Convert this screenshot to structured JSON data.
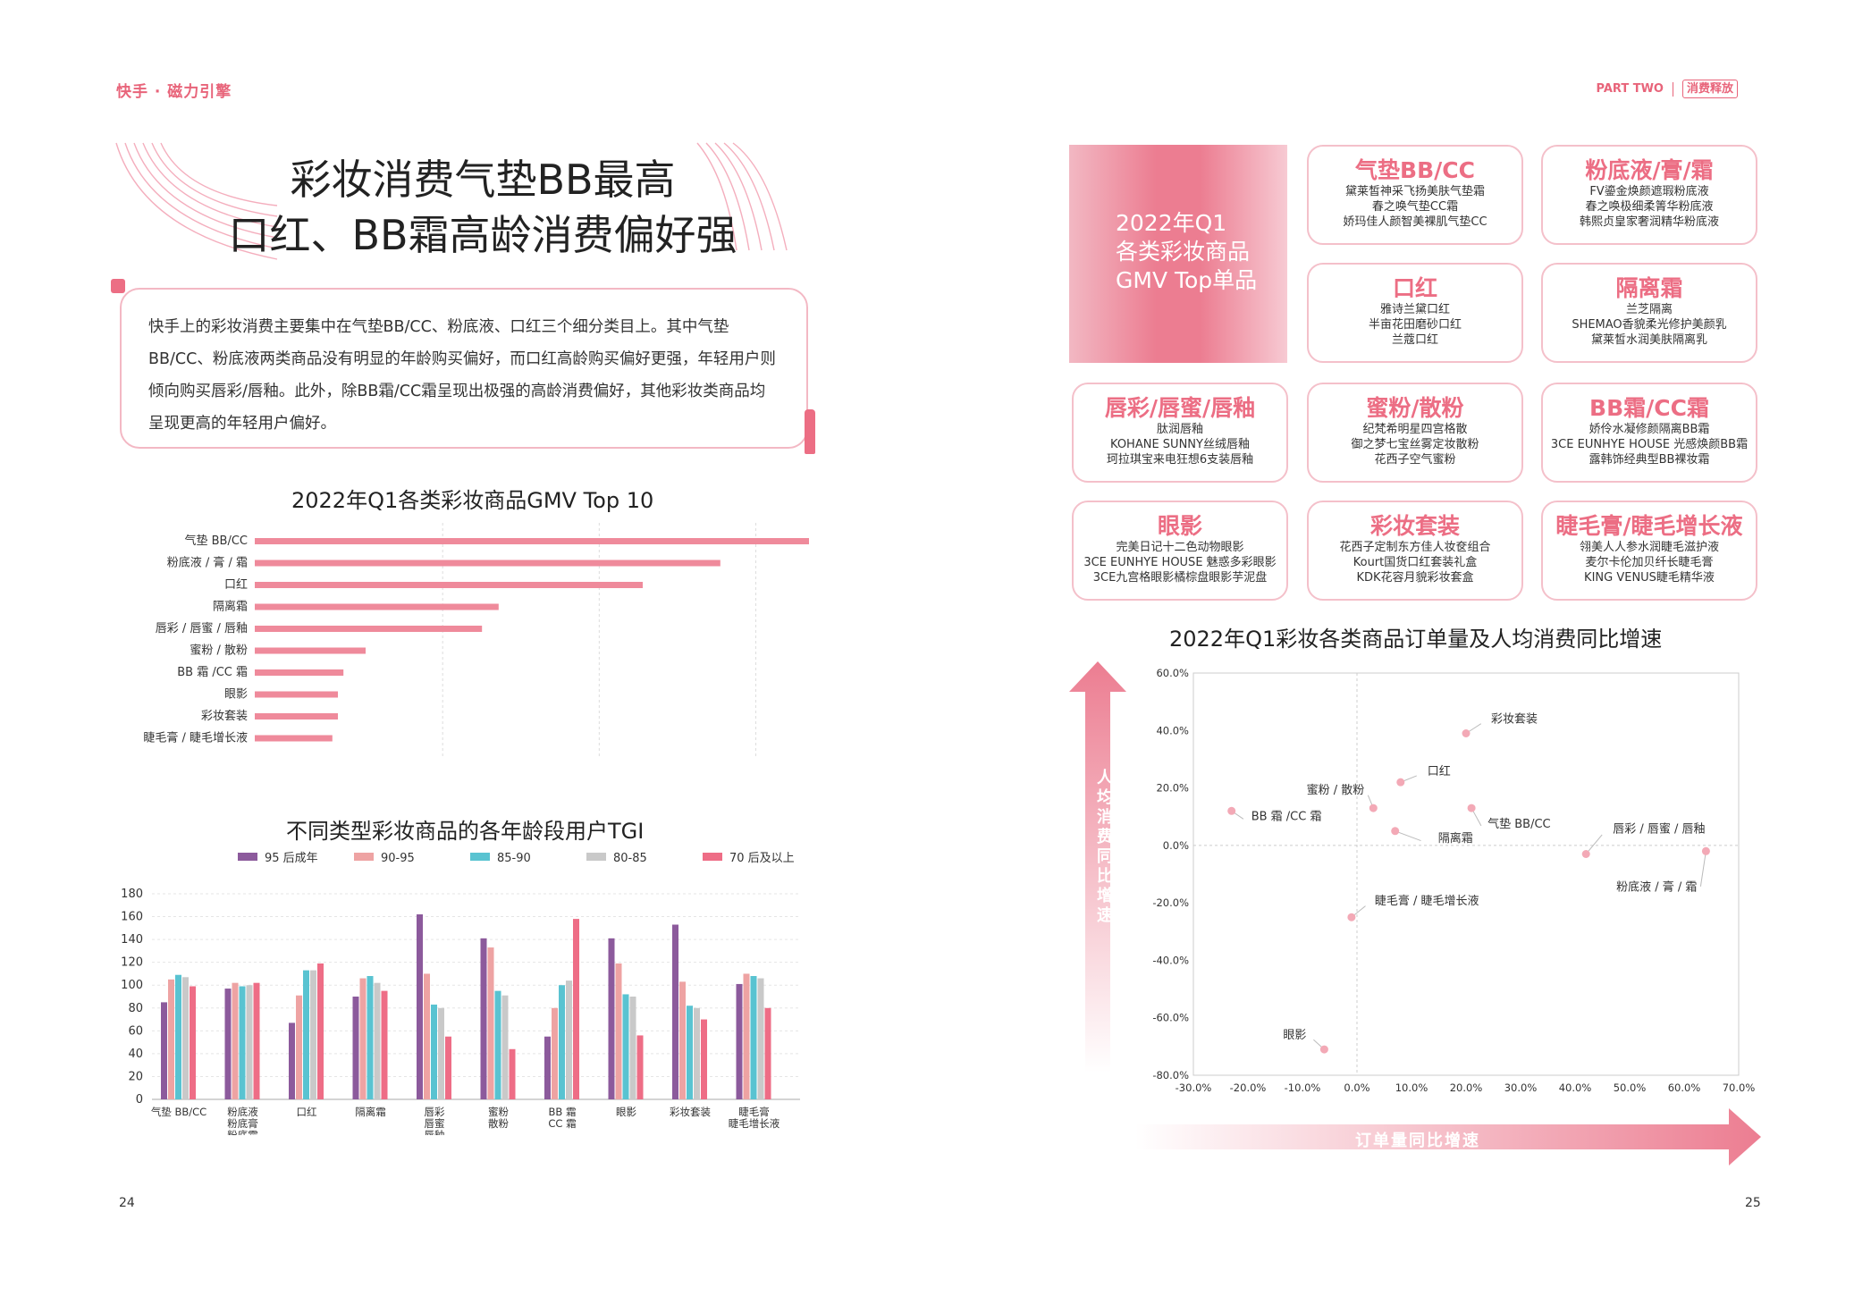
{
  "header": {
    "logo": "快手 · 磁力引擎",
    "part": "PART TWO",
    "section": "消费释放"
  },
  "title": {
    "line1": "彩妆消费气垫BB最高",
    "line2": "口红、BB霜高龄消费偏好强"
  },
  "intro": "快手上的彩妆消费主要集中在气垫BB/CC、粉底液、口红三个细分类目上。其中气垫BB/CC、粉底液两类商品没有明显的年龄购买偏好，而口红高龄购买偏好更强，年轻用户则倾向购买唇彩/唇釉。此外，除BB霜/CC霜呈现出极强的高龄消费偏好，其他彩妆类商品均呈现更高的年轻用户偏好。",
  "colors": {
    "accent": "#ec6e84",
    "bar": "#ef8a9b",
    "purple": "#8c5a9c",
    "salmon": "#eea3a3",
    "cyan": "#59c3d1",
    "gray": "#c9c9c9",
    "pink": "#ee6d86"
  },
  "chart_data": [
    {
      "type": "bar",
      "orientation": "horizontal",
      "title": "2022年Q1各类彩妆商品GMV Top 10",
      "categories": [
        "气垫 BB/CC",
        "粉底液 / 膏 / 霜",
        "口红",
        "隔离霜",
        "唇彩 / 唇蜜 / 唇釉",
        "蜜粉 / 散粉",
        "BB 霜 /CC 霜",
        "眼影",
        "彩妆套装",
        "睫毛膏 / 睫毛增长液"
      ],
      "values": [
        100,
        84,
        70,
        44,
        41,
        20,
        16,
        15,
        15,
        14
      ]
    },
    {
      "type": "bar",
      "title": "不同类型彩妆商品的各年龄段用户TGI",
      "categories": [
        "气垫 BB/CC",
        "粉底液\n粉底膏\n粉底霜",
        "口红",
        "隔离霜",
        "唇彩\n唇蜜\n唇釉",
        "蜜粉\n散粉",
        "BB 霜\nCC 霜",
        "眼影",
        "彩妆套装",
        "睫毛膏\n睫毛增长液"
      ],
      "ylim": [
        0,
        180
      ],
      "yticks": [
        "180",
        "160",
        "140",
        "120",
        "100",
        "80",
        "60",
        "40",
        "20",
        "0"
      ],
      "series": [
        {
          "name": "95 后成年",
          "values": [
            85,
            97,
            67,
            90,
            162,
            141,
            55,
            141,
            153,
            101
          ]
        },
        {
          "name": "90-95",
          "values": [
            105,
            102,
            91,
            106,
            110,
            133,
            80,
            119,
            103,
            110
          ]
        },
        {
          "name": "85-90",
          "values": [
            109,
            99,
            113,
            108,
            83,
            95,
            100,
            92,
            82,
            108
          ]
        },
        {
          "name": "80-85",
          "values": [
            107,
            100,
            113,
            102,
            80,
            91,
            104,
            90,
            80,
            106
          ]
        },
        {
          "name": "70 后及以上",
          "values": [
            99,
            102,
            119,
            95,
            55,
            44,
            158,
            56,
            70,
            80
          ]
        }
      ]
    },
    {
      "type": "scatter",
      "title": "2022年Q1彩妆各类商品订单量及人均消费同比增速",
      "xlabel": "订单量同比增速",
      "ylabel": "人均消费同比增速",
      "xticks": [
        "-30.0%",
        "-20.0%",
        "-10.0%",
        "0.0%",
        "10.0%",
        "20.0%",
        "30.0%",
        "40.0%",
        "50.0%",
        "60.0%",
        "70.0%"
      ],
      "yticks": [
        "60.0%",
        "40.0%",
        "20.0%",
        "0.0%",
        "-20.0%",
        "-40.0%",
        "-60.0%",
        "-80.0%"
      ],
      "xlim": [
        -30,
        70
      ],
      "ylim": [
        -80,
        60
      ],
      "points": [
        {
          "label": "彩妆套装",
          "x": 20,
          "y": 39
        },
        {
          "label": "口红",
          "x": 8,
          "y": 22
        },
        {
          "label": "蜜粉 / 散粉",
          "x": 3,
          "y": 13
        },
        {
          "label": "BB 霜 /CC 霜",
          "x": -23,
          "y": 12
        },
        {
          "label": "气垫 BB/CC",
          "x": 21,
          "y": 13
        },
        {
          "label": "隔离霜",
          "x": 7,
          "y": 5
        },
        {
          "label": "唇彩 / 唇蜜 / 唇釉",
          "x": 42,
          "y": -3
        },
        {
          "label": "粉底液 / 膏 / 霜",
          "x": 64,
          "y": -2
        },
        {
          "label": "睫毛膏 / 睫毛增长液",
          "x": -1,
          "y": -25
        },
        {
          "label": "眼影",
          "x": -6,
          "y": -71
        }
      ]
    }
  ],
  "hero": {
    "line1": "2022年Q1",
    "line2": "各类彩妆商品",
    "line3": "GMV Top单品"
  },
  "cards": [
    {
      "title": "气垫BB/CC",
      "items": [
        "黛莱皙神采飞扬美肤气垫霜",
        "春之唤气垫CC霜",
        "娇玛佳人颜智美裸肌气垫CC"
      ]
    },
    {
      "title": "粉底液/膏/霜",
      "items": [
        "FV鎏金焕颜遮瑕粉底液",
        "春之唤极细柔箐华粉底液",
        "韩熙贞皇家奢润精华粉底液"
      ]
    },
    {
      "title": "口红",
      "items": [
        "雅诗兰黛口红",
        "半亩花田磨砂口红",
        "兰蔻口红"
      ]
    },
    {
      "title": "隔离霜",
      "items": [
        "兰芝隔离",
        "SHEMAO香貌柔光修护美颜乳",
        "黛莱皙水润美肤隔离乳"
      ]
    },
    {
      "title": "唇彩/唇蜜/唇釉",
      "items": [
        "肽润唇釉",
        "KOHANE SUNNY丝绒唇釉",
        "珂拉琪宝来电狂想6支装唇釉"
      ]
    },
    {
      "title": "蜜粉/散粉",
      "items": [
        "纪梵希明星四宫格散",
        "御之梦七宝丝雾定妆散粉",
        "花西子空气蜜粉"
      ]
    },
    {
      "title": "BB霜/CC霜",
      "items": [
        "娇伶水凝修颜隔离BB霜",
        "3CE EUNHYE HOUSE 光感焕颜BB霜",
        "露韩饰经典型BB裸妆霜"
      ]
    },
    {
      "title": "眼影",
      "items": [
        "完美日记十二色动物眼影",
        "3CE EUNHYE HOUSE 魅惑多彩眼影",
        "3CE九宫格眼影橘棕盘眼影芋泥盘"
      ]
    },
    {
      "title": "彩妆套装",
      "items": [
        "花西子定制东方佳人妆奁组合",
        "Kourt国货口红套装礼盒",
        "KDK花容月貌彩妆套盒"
      ]
    },
    {
      "title": "睫毛膏/睫毛增长液",
      "items": [
        "翎美人人参水润睫毛滋护液",
        "麦尔卡伦加贝纤长睫毛膏",
        "KING VENUS睫毛精华液"
      ]
    }
  ],
  "page_left": "24",
  "page_right": "25"
}
